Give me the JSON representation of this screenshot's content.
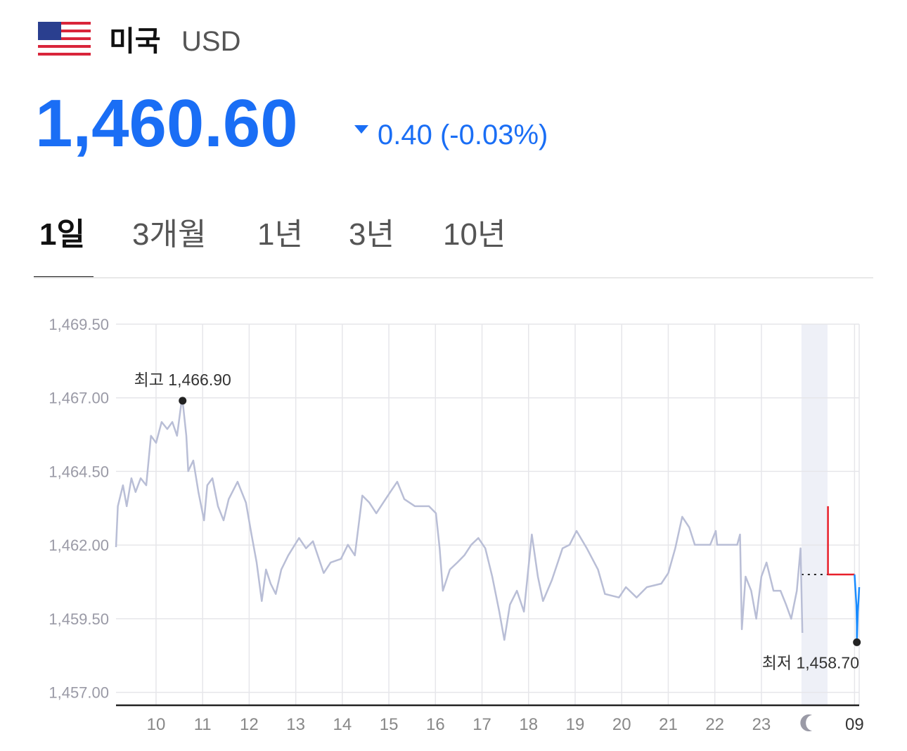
{
  "header": {
    "country": "미국",
    "currency": "USD",
    "price": "1,460.60",
    "change": "0.40",
    "change_pct": "(-0.03%)"
  },
  "tabs": {
    "items": [
      "1일",
      "3개월",
      "1년",
      "3년",
      "10년"
    ],
    "active": 0
  },
  "chart_data": {
    "type": "line",
    "xlim": [
      0.14,
      16.1
    ],
    "ylim": [
      1456.56,
      1469.5
    ],
    "yticks": [
      {
        "value": 1457,
        "label": "1,457.00"
      },
      {
        "value": 1459.5,
        "label": "1,459.50"
      },
      {
        "value": 1462,
        "label": "1,462.00"
      },
      {
        "value": 1464.5,
        "label": "1,464.50"
      },
      {
        "value": 1467,
        "label": "1,467.00"
      },
      {
        "value": 1469.5,
        "label": "1,469.50"
      }
    ],
    "xticks": [
      {
        "value": 1,
        "label": "10"
      },
      {
        "value": 2,
        "label": "11"
      },
      {
        "value": 3,
        "label": "12"
      },
      {
        "value": 4,
        "label": "13"
      },
      {
        "value": 5,
        "label": "14"
      },
      {
        "value": 6,
        "label": "15"
      },
      {
        "value": 7,
        "label": "16"
      },
      {
        "value": 8,
        "label": "17"
      },
      {
        "value": 9,
        "label": "18"
      },
      {
        "value": 10,
        "label": "19"
      },
      {
        "value": 11,
        "label": "20"
      },
      {
        "value": 12,
        "label": "21"
      },
      {
        "value": 13,
        "label": "22"
      },
      {
        "value": 14,
        "label": "23"
      },
      {
        "value": 15,
        "label": null
      },
      {
        "value": 16,
        "label": "09"
      }
    ],
    "grid": true,
    "night_band": [
      14.86,
      15.42
    ],
    "reference_line": 1461.0,
    "series": [
      {
        "color": "#b9bed6",
        "x": [
          0.14,
          0.18,
          0.29,
          0.37,
          0.47,
          0.56,
          0.67,
          0.79,
          0.89,
          1.0,
          1.12,
          1.24,
          1.35,
          1.45,
          1.54,
          1.57,
          1.65,
          1.69,
          1.8,
          1.91,
          2.03,
          2.1,
          2.21,
          2.33,
          2.45,
          2.56,
          2.75,
          2.93,
          3.05,
          3.16,
          3.27,
          3.36,
          3.46,
          3.57,
          3.69,
          3.84,
          4.07,
          4.22,
          4.37,
          4.6,
          4.75,
          4.97,
          5.12,
          5.27,
          5.43,
          5.58,
          5.73,
          5.88,
          6.03,
          6.18,
          6.33,
          6.56,
          6.86,
          7.01,
          7.09,
          7.16,
          7.31,
          7.47,
          7.62,
          7.77,
          7.92,
          8.07,
          8.22,
          8.37,
          8.48,
          8.6,
          8.75,
          8.9,
          9.07,
          9.2,
          9.31,
          9.5,
          9.73,
          9.88,
          10.03,
          10.25,
          10.49,
          10.64,
          10.94,
          11.09,
          11.32,
          11.54,
          11.85,
          12.0,
          12.15,
          12.3,
          12.45,
          12.57,
          12.9,
          13.02,
          13.05,
          13.48,
          13.54,
          13.58,
          13.66,
          13.78,
          13.89,
          14.0,
          14.11,
          14.26,
          14.41,
          14.53,
          14.64,
          14.76,
          14.84,
          14.88
        ],
        "values": [
          1461.93,
          1463.32,
          1464.03,
          1463.32,
          1464.27,
          1463.8,
          1464.27,
          1464.03,
          1465.71,
          1465.47,
          1466.18,
          1465.94,
          1466.18,
          1465.71,
          1466.78,
          1466.9,
          1465.71,
          1464.51,
          1464.87,
          1463.8,
          1462.84,
          1464.03,
          1464.27,
          1463.32,
          1462.84,
          1463.56,
          1464.15,
          1463.44,
          1462.36,
          1461.41,
          1460.1,
          1461.17,
          1460.69,
          1460.34,
          1461.17,
          1461.65,
          1462.24,
          1461.89,
          1462.13,
          1461.05,
          1461.41,
          1461.53,
          1462.01,
          1461.65,
          1463.68,
          1463.44,
          1463.08,
          1463.44,
          1463.8,
          1464.15,
          1463.56,
          1463.32,
          1463.32,
          1463.08,
          1461.89,
          1460.45,
          1461.17,
          1461.41,
          1461.65,
          1462.01,
          1462.24,
          1461.89,
          1460.93,
          1459.74,
          1458.78,
          1459.98,
          1460.45,
          1459.74,
          1462.36,
          1460.93,
          1460.1,
          1460.81,
          1461.89,
          1462.01,
          1462.48,
          1461.89,
          1461.17,
          1460.34,
          1460.22,
          1460.57,
          1460.22,
          1460.57,
          1460.69,
          1461.05,
          1461.89,
          1462.96,
          1462.6,
          1462.01,
          1462.01,
          1462.48,
          1462.01,
          1462.01,
          1462.36,
          1459.14,
          1460.93,
          1460.45,
          1459.5,
          1460.93,
          1461.41,
          1460.45,
          1460.45,
          1459.98,
          1459.5,
          1460.45,
          1461.89,
          1459.02
        ]
      },
      {
        "color": "#e8202a",
        "x": [
          15.43,
          15.43,
          16.0
        ],
        "values": [
          1463.32,
          1461.0,
          1461.0
        ]
      },
      {
        "color": "#1a8cff",
        "x": [
          16.0,
          16.04,
          16.05,
          16.05,
          16.07,
          16.09,
          16.1
        ],
        "values": [
          1461.0,
          1459.98,
          1459.26,
          1458.7,
          1459.74,
          1460.22,
          1460.57
        ]
      }
    ],
    "annotations": [
      {
        "text": "최고",
        "x": 1.57,
        "value": 1466.9,
        "value_label": "1,466.90"
      },
      {
        "text": "최저",
        "x": 16.05,
        "value": 1458.7,
        "value_label": "1,458.70"
      }
    ]
  }
}
